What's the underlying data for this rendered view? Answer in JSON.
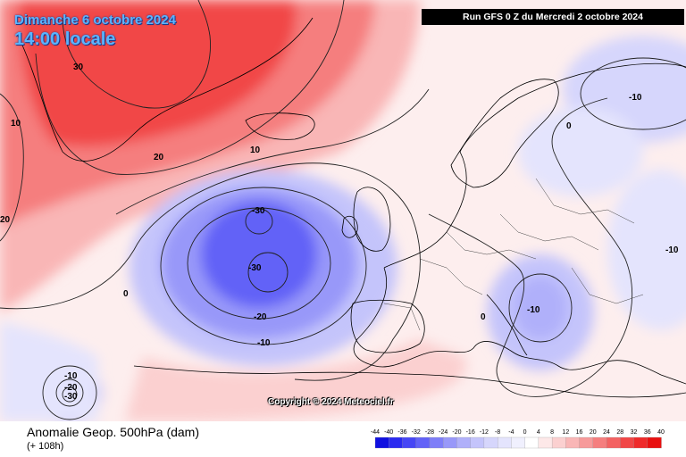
{
  "header": {
    "date_title": "Dimanche 6 octobre 2024",
    "time_title": "14:00 locale",
    "run_info": "Run GFS 0 Z du Mercredi 2 octobre 2024"
  },
  "copyright": "Copyright © 2024 Meteociel.fr",
  "footer": {
    "title": "Anomalie Geop. 500hPa (dam)",
    "subtitle": "(+ 108h)"
  },
  "contour_labels": [
    "30",
    "20",
    "10",
    "10",
    "20",
    "-30",
    "-30",
    "-20",
    "-10",
    "0",
    "-10",
    "-20",
    "-30",
    "0",
    "-10",
    "0",
    "-10",
    "-10"
  ],
  "scale": {
    "labels": [
      "-44",
      "-40",
      "-36",
      "-32",
      "-28",
      "-24",
      "-20",
      "-16",
      "-12",
      "-8",
      "-4",
      "0",
      "4",
      "8",
      "12",
      "16",
      "20",
      "24",
      "28",
      "32",
      "36",
      "40"
    ],
    "colors": [
      "#1010e0",
      "#2a2af0",
      "#4646f5",
      "#6262f7",
      "#7e7ef8",
      "#9898f9",
      "#b0b0fa",
      "#c4c4fb",
      "#d6d6fc",
      "#e4e4fd",
      "#f0f0fe",
      "#ffffff",
      "#fde8e8",
      "#fbd0d0",
      "#f9b6b6",
      "#f79a9a",
      "#f57e7e",
      "#f36262",
      "#f14646",
      "#ef2a2a",
      "#e81010"
    ]
  }
}
